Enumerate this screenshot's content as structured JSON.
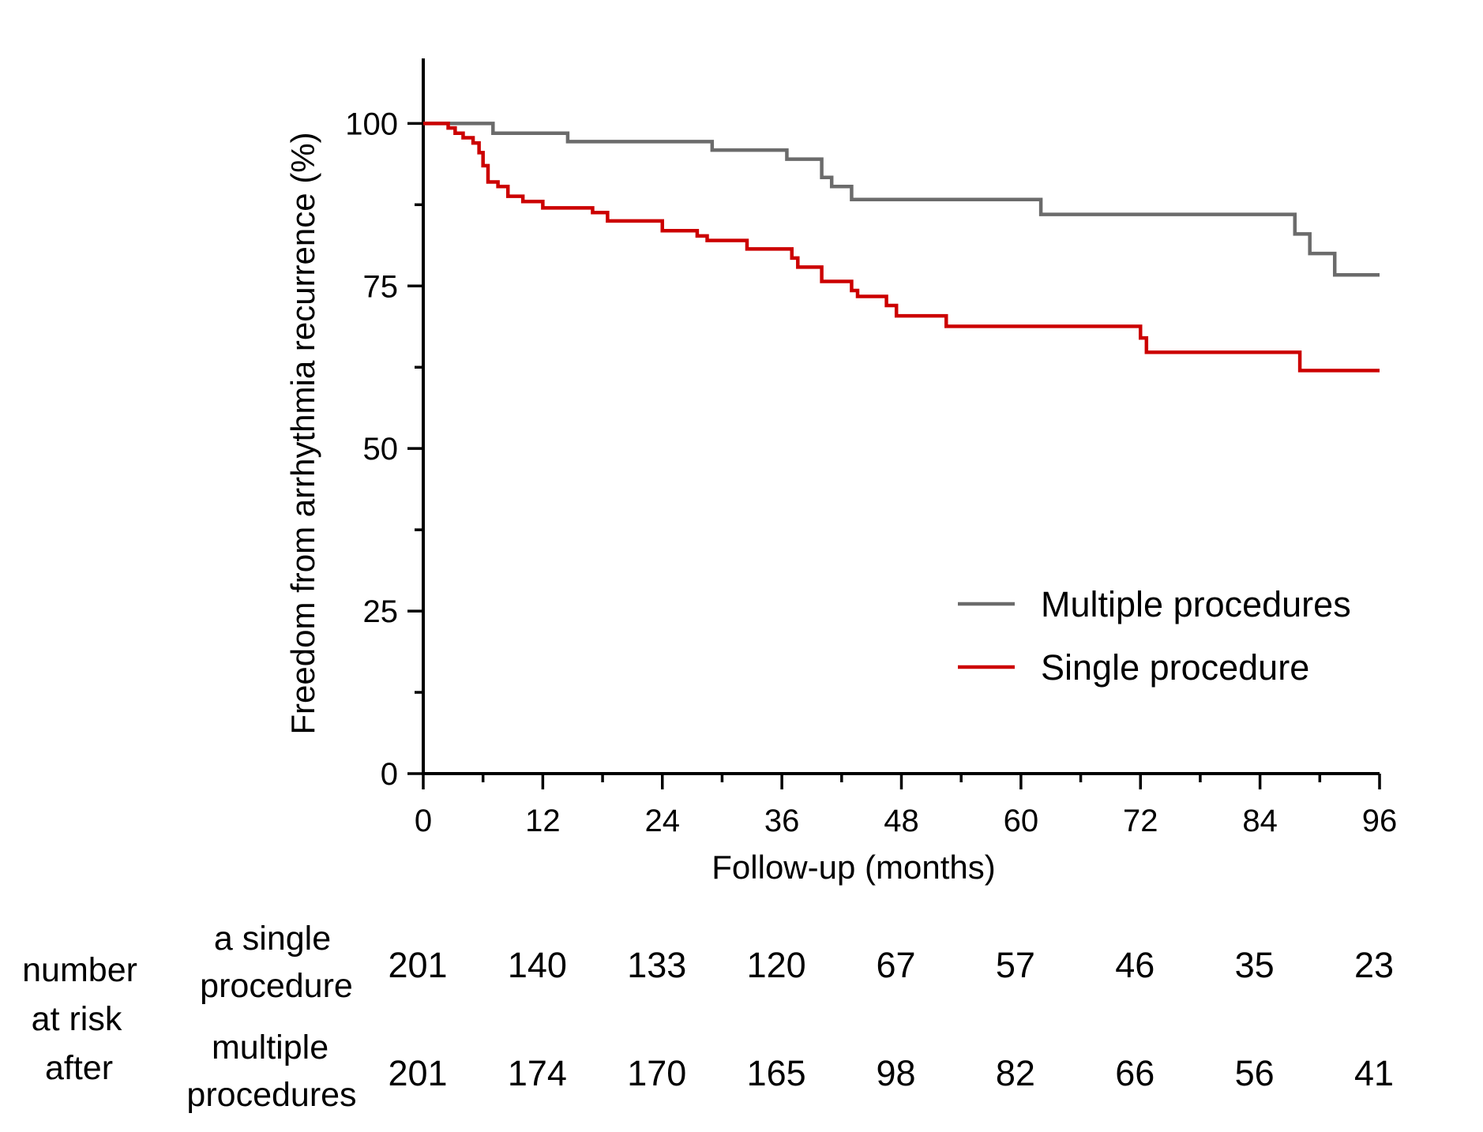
{
  "chart_data": {
    "type": "line",
    "title": "",
    "xlabel": "Follow-up (months)",
    "ylabel": "Freedom from arrhythmia recurrence (%)",
    "xlim": [
      0,
      96
    ],
    "ylim": [
      0,
      110
    ],
    "x_ticks": [
      "0",
      "12",
      "24",
      "36",
      "48",
      "60",
      "72",
      "84",
      "96"
    ],
    "y_ticks": [
      "0",
      "25",
      "50",
      "75",
      "100"
    ],
    "grid": false,
    "legend_position": "lower-right",
    "series": [
      {
        "name": "Multiple procedures",
        "color": "#6b6b6b",
        "step": true,
        "x": [
          0,
          7,
          14.5,
          29,
          36.5,
          40,
          41,
          43,
          62,
          87.5,
          89,
          91.5,
          96
        ],
        "y": [
          100,
          98.5,
          97.2,
          95.9,
          94.5,
          91.7,
          90.3,
          88.3,
          86,
          83,
          80,
          76.7,
          76.7
        ]
      },
      {
        "name": "Single procedure",
        "color": "#cc0000",
        "step": true,
        "x": [
          0,
          2.5,
          3.2,
          4,
          5,
          5.6,
          6,
          6.5,
          7.5,
          8.5,
          10,
          12,
          17,
          18.5,
          24,
          27.5,
          28.5,
          32.5,
          37,
          37.6,
          40,
          43,
          43.6,
          46.5,
          47.5,
          52.5,
          72,
          72.6,
          88,
          96
        ],
        "y": [
          100,
          99.3,
          98.5,
          97.8,
          97,
          95.5,
          93.5,
          91,
          90.3,
          88.8,
          88,
          87,
          86.3,
          85,
          83.5,
          82.7,
          82,
          80.7,
          79.3,
          77.9,
          75.7,
          74.3,
          73.4,
          72,
          70.4,
          68.8,
          67,
          64.8,
          62,
          62
        ]
      }
    ],
    "risk_table": {
      "row_group_label": [
        "number",
        "at risk",
        "after"
      ],
      "times": [
        0,
        12,
        24,
        36,
        48,
        60,
        72,
        84,
        96
      ],
      "rows": [
        {
          "label": [
            "a single",
            "procedure"
          ],
          "values": [
            "201",
            "140",
            "133",
            "120",
            "67",
            "57",
            "46",
            "35",
            "23"
          ]
        },
        {
          "label": [
            "multiple",
            "procedures"
          ],
          "values": [
            "201",
            "174",
            "170",
            "165",
            "98",
            "82",
            "66",
            "56",
            "41"
          ]
        }
      ]
    }
  }
}
